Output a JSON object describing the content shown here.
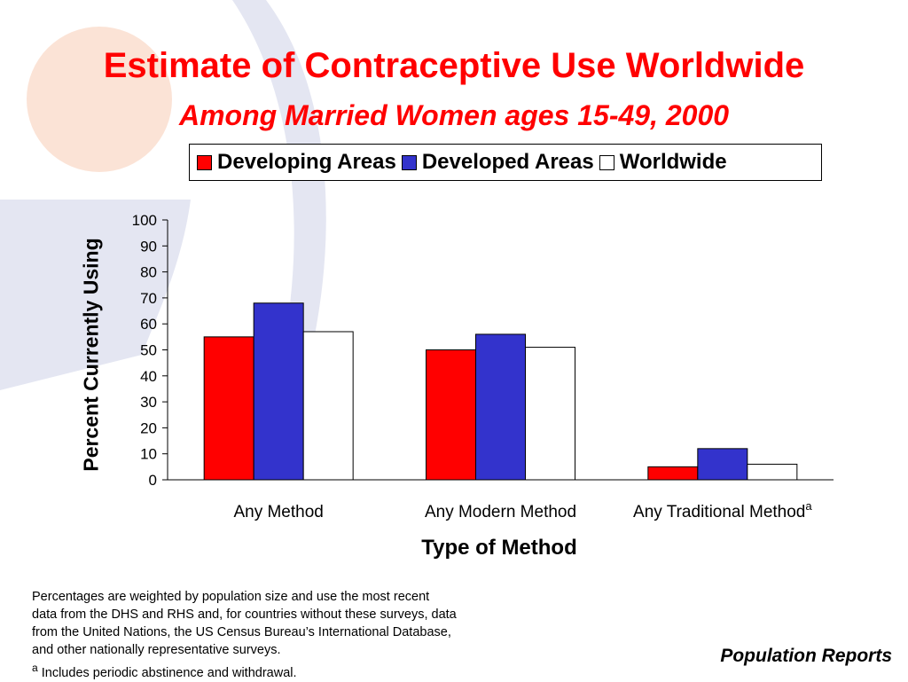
{
  "slide": {
    "title": "Estimate of Contraceptive Use Worldwide",
    "subtitle": "Among Married Women ages 15-49, 2000",
    "footnote_lines": [
      "Percentages are weighted by population size and use the most recent",
      "data from the DHS and RHS and, for countries without these surveys, data",
      "from the United Nations, the US Census Bureau’s International Database,",
      "and other nationally representative surveys."
    ],
    "footnote_mark": "a",
    "footnote_a": " Includes periodic abstinence and withdrawal.",
    "source": "Population Reports"
  },
  "chart_data": {
    "type": "bar",
    "title": "Estimate of Contraceptive Use Worldwide",
    "subtitle": "Among Married Women ages 15-49, 2000",
    "categories": [
      "Any Method",
      "Any Modern Method",
      "Any Traditional Method"
    ],
    "category_superscripts": [
      "",
      "",
      "a"
    ],
    "series": [
      {
        "name": "Developing Areas",
        "color": "#ff0000",
        "values": [
          55,
          50,
          5
        ]
      },
      {
        "name": "Developed Areas",
        "color": "#3333cc",
        "values": [
          68,
          56,
          12
        ]
      },
      {
        "name": "Worldwide",
        "color": "#ffffff",
        "values": [
          57,
          51,
          6
        ]
      }
    ],
    "xlabel": "Type of Method",
    "ylabel": "Percent Currently Using",
    "ylim": [
      0,
      100
    ],
    "yticks": [
      0,
      10,
      20,
      30,
      40,
      50,
      60,
      70,
      80,
      90,
      100
    ],
    "grid": false,
    "legend_position": "top"
  }
}
